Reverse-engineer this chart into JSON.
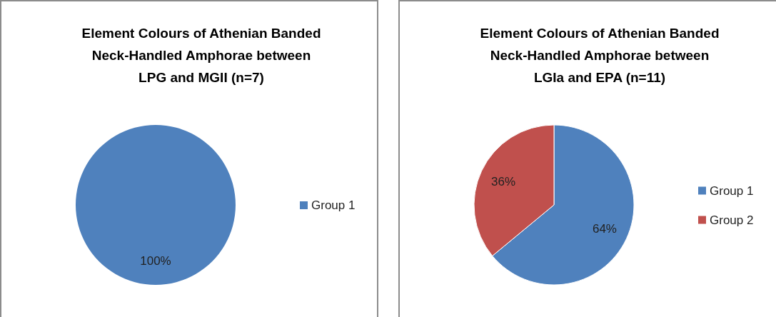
{
  "chart_data": [
    {
      "type": "pie",
      "title": "Element Colours of Athenian Banded Neck-Handled Amphorae between LPG and MGII (n=7)",
      "categories": [
        "Group 1"
      ],
      "values": [
        100
      ],
      "value_labels": [
        "100%"
      ],
      "colors": [
        "#4f81bd"
      ],
      "legend": "right"
    },
    {
      "type": "pie",
      "title": "Element Colours of Athenian Banded Neck-Handled Amphorae between LGIa and EPA (n=11)",
      "categories": [
        "Group 1",
        "Group 2"
      ],
      "values": [
        64,
        36
      ],
      "value_labels": [
        "64%",
        "36%"
      ],
      "colors": [
        "#4f81bd",
        "#c0504d"
      ],
      "legend": "right"
    }
  ]
}
